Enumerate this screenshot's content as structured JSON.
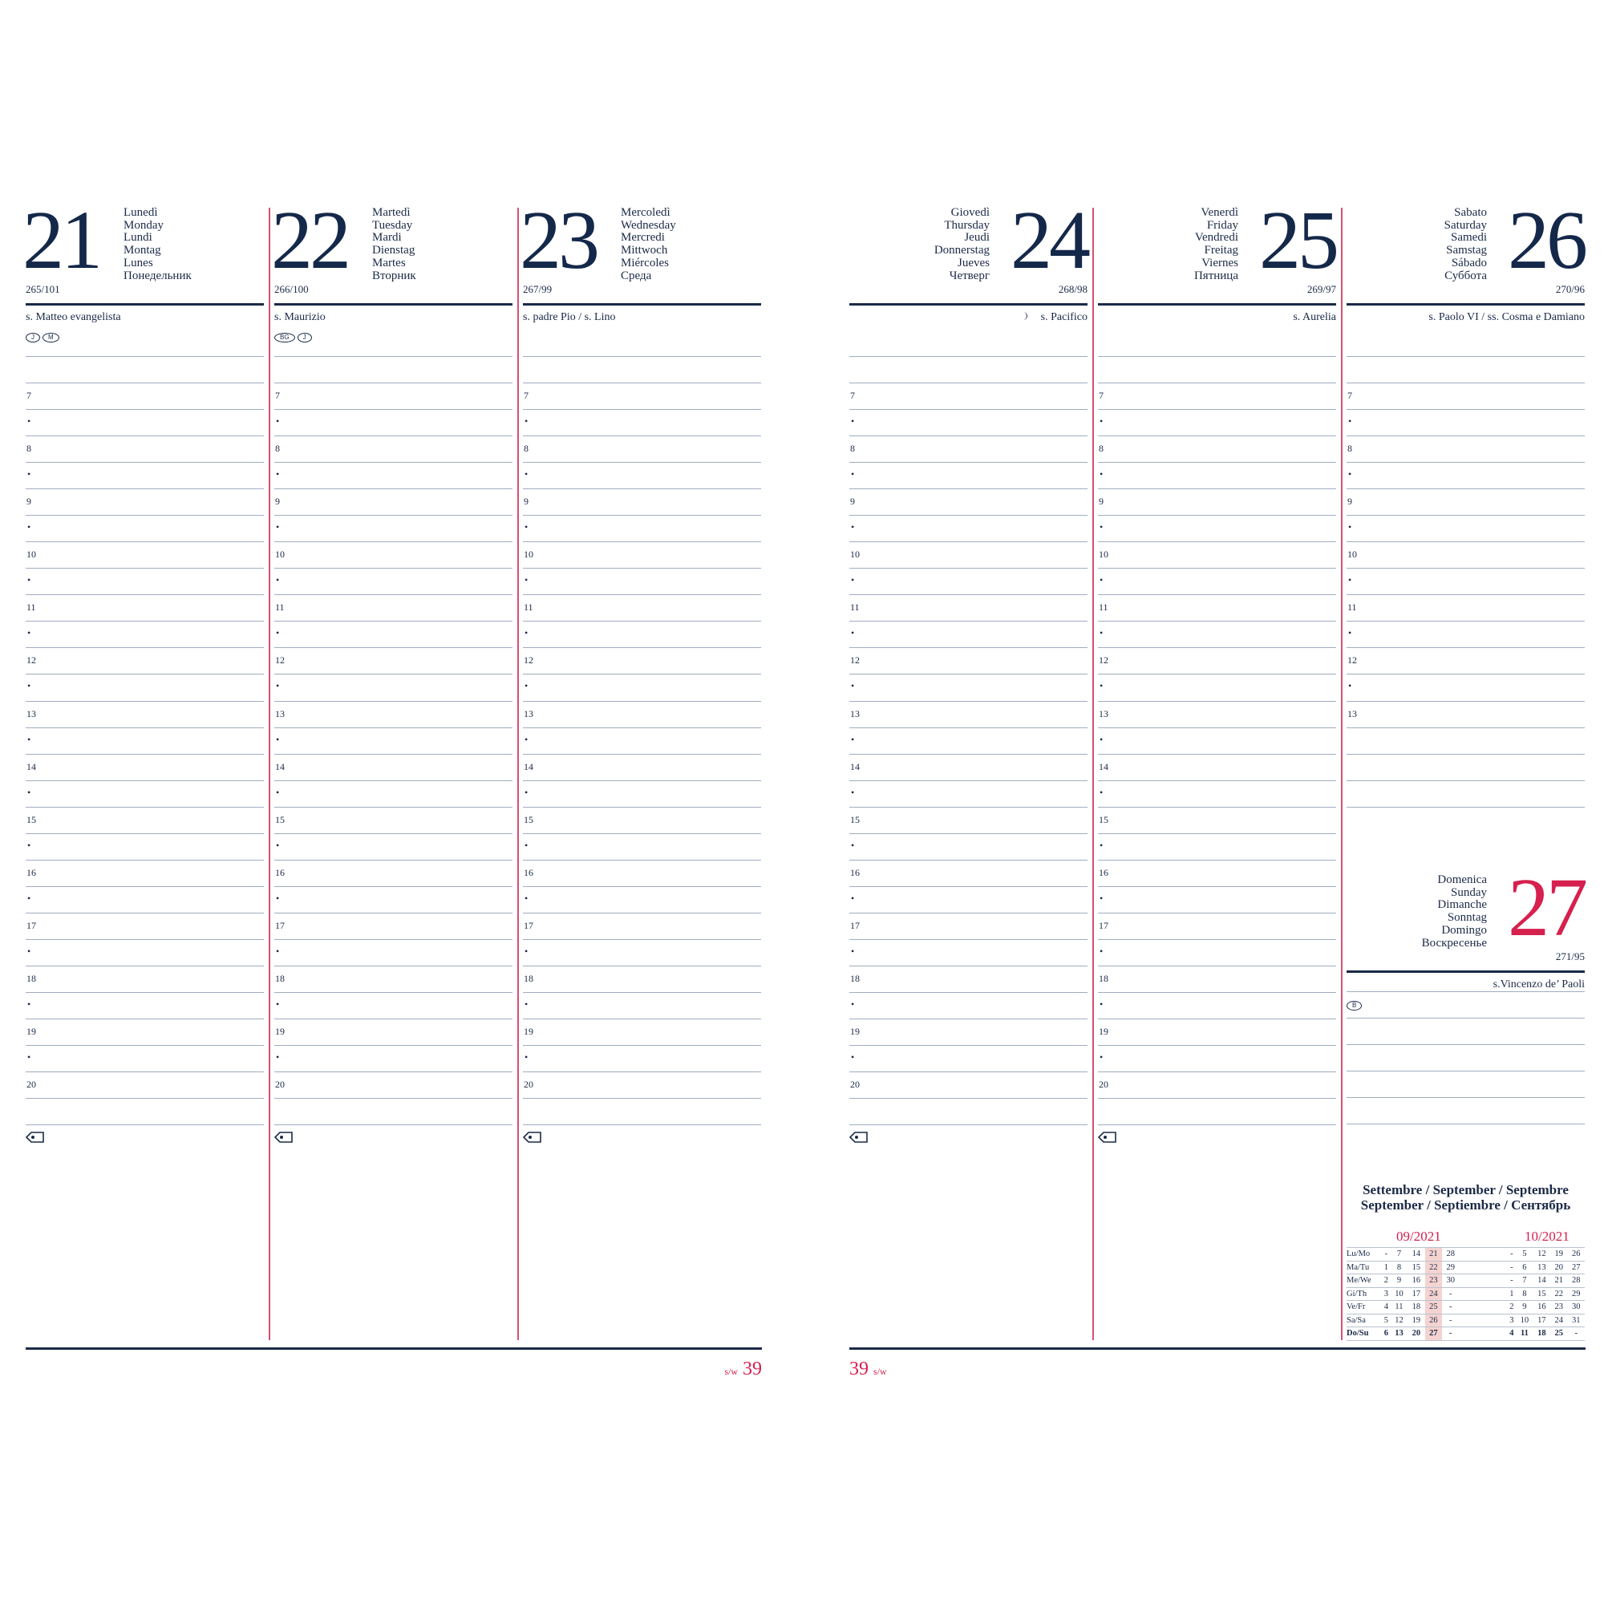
{
  "colors": {
    "navy": "#1b2a47",
    "accent": "#d6204e",
    "rule": "#9fadc0",
    "highlight": "#f4d3d0"
  },
  "days": [
    {
      "num": "21",
      "names": [
        "Lunedì",
        "Monday",
        "Lundi",
        "Montag",
        "Lunes",
        "Понедельник"
      ],
      "doy": "265/101",
      "saint": "s. Matteo evangelista",
      "badges": [
        "J",
        "M"
      ],
      "side": "left"
    },
    {
      "num": "22",
      "names": [
        "Martedì",
        "Tuesday",
        "Mardi",
        "Dienstag",
        "Martes",
        "Вторник"
      ],
      "doy": "266/100",
      "saint": "s. Maurizio",
      "badges": [
        "BG",
        "J"
      ],
      "side": "left"
    },
    {
      "num": "23",
      "names": [
        "Mercoledì",
        "Wednesday",
        "Mercredi",
        "Mittwoch",
        "Miércoles",
        "Среда"
      ],
      "doy": "267/99",
      "saint": "s. padre Pio / s. Lino",
      "badges": [],
      "side": "left"
    },
    {
      "num": "24",
      "names": [
        "Giovedì",
        "Thursday",
        "Jeudi",
        "Donnerstag",
        "Jueves",
        "Четверг"
      ],
      "doy": "268/98",
      "saint": "s. Pacifico",
      "moon": "first-quarter-moon-icon",
      "badges": [],
      "side": "right"
    },
    {
      "num": "25",
      "names": [
        "Venerdì",
        "Friday",
        "Vendredi",
        "Freitag",
        "Viernes",
        "Пятница"
      ],
      "doy": "269/97",
      "saint": "s. Aurelia",
      "badges": [],
      "side": "right"
    },
    {
      "num": "26",
      "names": [
        "Sabato",
        "Saturday",
        "Samedi",
        "Samstag",
        "Sábado",
        "Суббота"
      ],
      "doy": "270/96",
      "saint": "s. Paolo VI / ss. Cosma e Damiano",
      "badges": [],
      "side": "right"
    }
  ],
  "sunday": {
    "num": "27",
    "names": [
      "Domenica",
      "Sunday",
      "Dimanche",
      "Sonntag",
      "Domingo",
      "Воскресенье"
    ],
    "doy": "271/95",
    "saint": "s.Vincenzo de’ Paoli",
    "badges": [
      "B"
    ]
  },
  "hours": [
    "7",
    "8",
    "9",
    "10",
    "11",
    "12",
    "13",
    "14",
    "15",
    "16",
    "17",
    "18",
    "19",
    "20"
  ],
  "saturday_hours": [
    "7",
    "8",
    "9",
    "10",
    "11",
    "12",
    "13"
  ],
  "footer": {
    "left_week": "39",
    "left_label": "s/w",
    "right_week": "39",
    "right_label": "s/w"
  },
  "minical": {
    "title_line1": "Settembre / September / Septembre",
    "title_line2": "September / Septiembre / Сентябрь",
    "month1": "09/2021",
    "month2": "10/2021",
    "rows": [
      {
        "label": "Lu/Mo",
        "m1": [
          "-",
          "7",
          "14",
          "21",
          "28"
        ],
        "m2": [
          "-",
          "5",
          "12",
          "19",
          "26"
        ]
      },
      {
        "label": "Ma/Tu",
        "m1": [
          "1",
          "8",
          "15",
          "22",
          "29"
        ],
        "m2": [
          "-",
          "6",
          "13",
          "20",
          "27"
        ]
      },
      {
        "label": "Me/We",
        "m1": [
          "2",
          "9",
          "16",
          "23",
          "30"
        ],
        "m2": [
          "-",
          "7",
          "14",
          "21",
          "28"
        ]
      },
      {
        "label": "Gi/Th",
        "m1": [
          "3",
          "10",
          "17",
          "24",
          "-"
        ],
        "m2": [
          "1",
          "8",
          "15",
          "22",
          "29"
        ]
      },
      {
        "label": "Ve/Fr",
        "m1": [
          "4",
          "11",
          "18",
          "25",
          "-"
        ],
        "m2": [
          "2",
          "9",
          "16",
          "23",
          "30"
        ]
      },
      {
        "label": "Sa/Sa",
        "m1": [
          "5",
          "12",
          "19",
          "26",
          "-"
        ],
        "m2": [
          "3",
          "10",
          "17",
          "24",
          "31"
        ]
      },
      {
        "label": "Do/Su",
        "m1": [
          "6",
          "13",
          "20",
          "27",
          "-"
        ],
        "m2": [
          "4",
          "11",
          "18",
          "25",
          "-"
        ]
      }
    ]
  }
}
